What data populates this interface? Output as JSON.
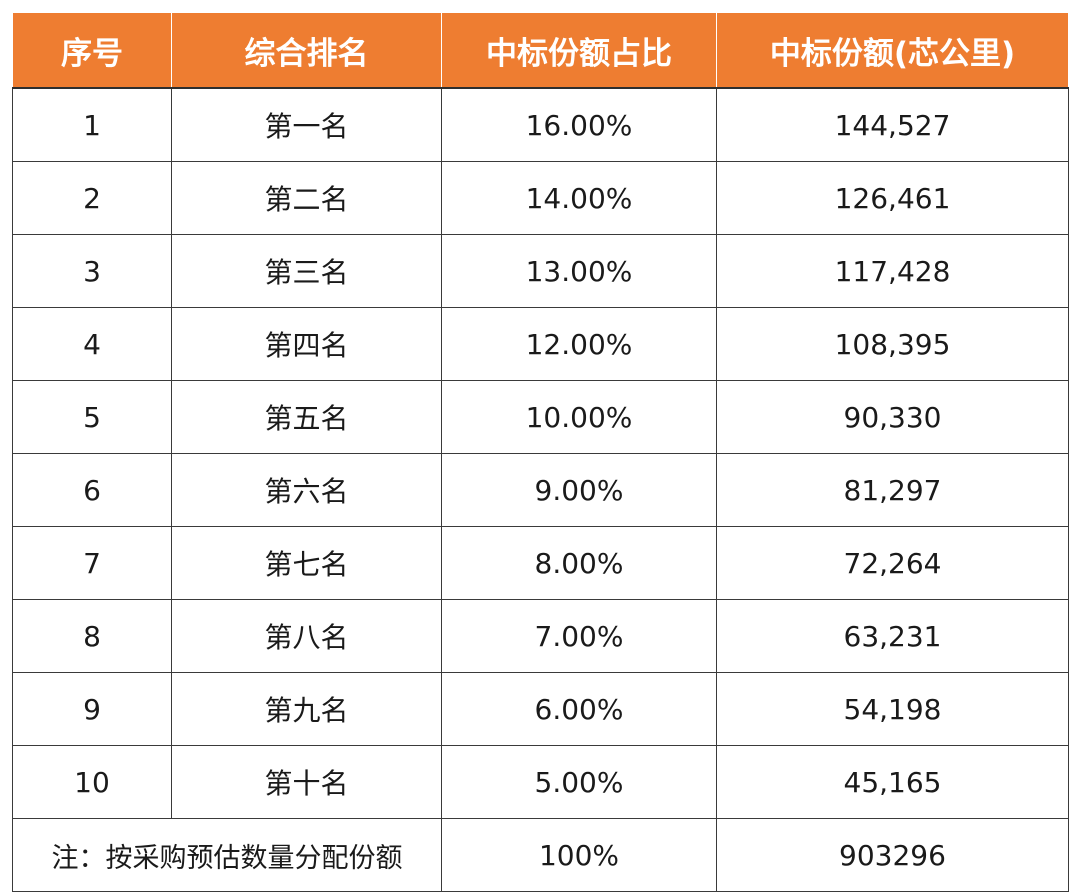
{
  "table": {
    "headers": [
      "序号",
      "综合排名",
      "中标份额占比",
      "中标份额(芯公里)"
    ],
    "rows": [
      [
        "1",
        "第一名",
        "16.00%",
        "144,527"
      ],
      [
        "2",
        "第二名",
        "14.00%",
        "126,461"
      ],
      [
        "3",
        "第三名",
        "13.00%",
        "117,428"
      ],
      [
        "4",
        "第四名",
        "12.00%",
        "108,395"
      ],
      [
        "5",
        "第五名",
        "10.00%",
        "90,330"
      ],
      [
        "6",
        "第六名",
        "9.00%",
        "81,297"
      ],
      [
        "7",
        "第七名",
        "8.00%",
        "72,264"
      ],
      [
        "8",
        "第八名",
        "7.00%",
        "63,231"
      ],
      [
        "9",
        "第九名",
        "6.00%",
        "54,198"
      ],
      [
        "10",
        "第十名",
        "5.00%",
        "45,165"
      ]
    ],
    "footer": {
      "note": "注：按采购预估数量分配份额",
      "total_share": "100%",
      "total_amount": "903296"
    }
  },
  "colors": {
    "header_bg": "#ee7d31",
    "header_text": "#ffffff",
    "border": "#3a3a3a"
  }
}
